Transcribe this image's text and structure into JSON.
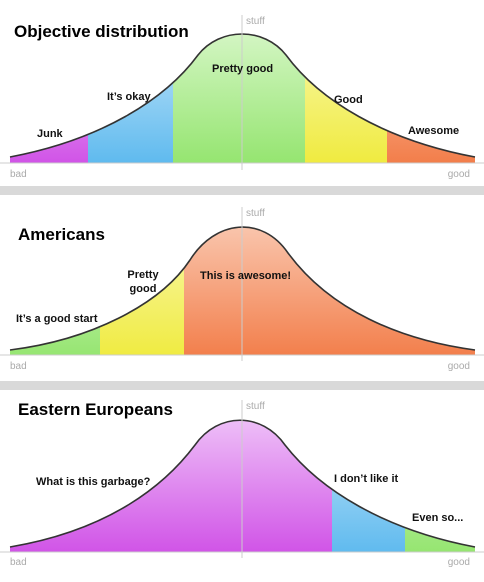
{
  "panels": [
    {
      "title": "Objective distribution",
      "axis_label": "stuff",
      "x_min_label": "bad",
      "x_max_label": "good",
      "regions": [
        [
          "Junk"
        ],
        [
          "It’s okay"
        ],
        [
          "Pretty good"
        ],
        [
          "Good"
        ],
        [
          "Awesome"
        ]
      ]
    },
    {
      "title": "Americans",
      "axis_label": "stuff",
      "x_min_label": "bad",
      "x_max_label": "good",
      "regions": [
        [
          "It’s a good start"
        ],
        [
          "Pretty",
          "good"
        ],
        [
          "This is awesome!"
        ]
      ]
    },
    {
      "title": "Eastern Europeans",
      "axis_label": "stuff",
      "x_min_label": "bad",
      "x_max_label": "good",
      "regions": [
        [
          "What is this garbage?"
        ],
        [
          "I don’t like it"
        ],
        [
          "Even so..."
        ]
      ]
    }
  ]
}
